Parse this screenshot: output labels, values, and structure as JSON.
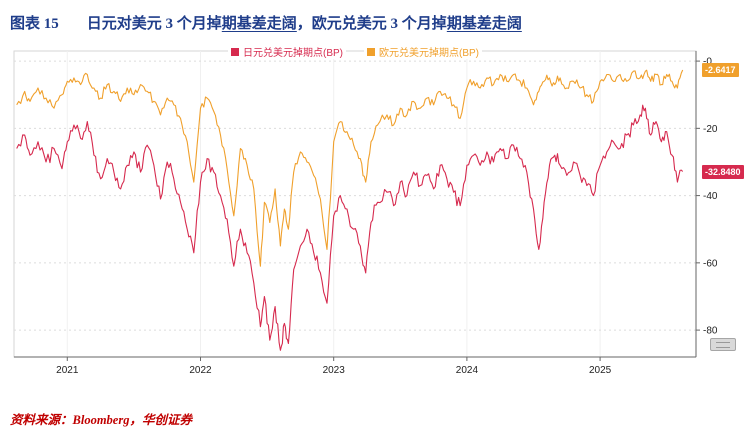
{
  "title": {
    "tag": "图表 15",
    "seg1": "日元对美元 3 个月掉",
    "seg1_u": "期基差走阔",
    "seg2": "，欧元兑美元 3 个月掉",
    "seg2_u": "期基差走阔"
  },
  "colors": {
    "title": "#1f3d8a",
    "footer": "#c00000",
    "axis": "#666666",
    "grid": "#dcdcdc",
    "tick_text": "#222222"
  },
  "footer": {
    "label": "资料来源：",
    "value": "Bloomberg，华创证券"
  },
  "chart_data": {
    "type": "line",
    "title": "",
    "xlabel": "",
    "ylabel": "",
    "legend_position": "top-center",
    "grid": true,
    "x_axis": {
      "ticks": [
        2021,
        2022,
        2023,
        2024,
        2025
      ],
      "range": [
        2020.6,
        2025.72
      ]
    },
    "y_axis": {
      "ticks": [
        0,
        -20,
        -40,
        -60,
        -80
      ],
      "tick_labels": [
        "-0",
        "-20",
        "-40",
        "-60",
        "-80"
      ],
      "range": [
        -88,
        3
      ],
      "position": "right"
    },
    "x": [
      2020.62,
      2020.68,
      2020.72,
      2020.78,
      2020.84,
      2020.9,
      2020.96,
      2021.0,
      2021.05,
      2021.1,
      2021.15,
      2021.2,
      2021.25,
      2021.3,
      2021.35,
      2021.4,
      2021.45,
      2021.5,
      2021.55,
      2021.6,
      2021.65,
      2021.7,
      2021.75,
      2021.8,
      2021.85,
      2021.9,
      2021.95,
      2022.0,
      2022.05,
      2022.1,
      2022.15,
      2022.2,
      2022.25,
      2022.3,
      2022.35,
      2022.4,
      2022.45,
      2022.48,
      2022.52,
      2022.56,
      2022.6,
      2022.63,
      2022.66,
      2022.7,
      2022.75,
      2022.8,
      2022.85,
      2022.9,
      2022.95,
      2023.0,
      2023.05,
      2023.1,
      2023.15,
      2023.2,
      2023.24,
      2023.28,
      2023.33,
      2023.4,
      2023.45,
      2023.5,
      2023.55,
      2023.6,
      2023.65,
      2023.7,
      2023.75,
      2023.8,
      2023.85,
      2023.9,
      2023.95,
      2024.0,
      2024.05,
      2024.1,
      2024.15,
      2024.2,
      2024.25,
      2024.3,
      2024.35,
      2024.4,
      2024.45,
      2024.5,
      2024.54,
      2024.58,
      2024.62,
      2024.66,
      2024.7,
      2024.75,
      2024.8,
      2024.85,
      2024.9,
      2024.95,
      2025.0,
      2025.05,
      2025.1,
      2025.15,
      2025.2,
      2025.25,
      2025.3,
      2025.34,
      2025.38,
      2025.42,
      2025.46,
      2025.5,
      2025.54,
      2025.58,
      2025.62
    ],
    "series": [
      {
        "id": "jpy-usd-swap",
        "name": "日元兑美元掉期点(BP)",
        "color": "#d62a4e",
        "last_label": "-32.8480",
        "noise": 2.2,
        "values": [
          -26,
          -22,
          -28,
          -24,
          -30,
          -26,
          -32,
          -24,
          -19,
          -23,
          -18,
          -28,
          -35,
          -29,
          -33,
          -38,
          -31,
          -27,
          -33,
          -25,
          -31,
          -41,
          -30,
          -35,
          -42,
          -50,
          -57,
          -36,
          -29,
          -33,
          -40,
          -47,
          -61,
          -50,
          -57,
          -66,
          -79,
          -70,
          -83,
          -73,
          -86,
          -78,
          -84,
          -62,
          -55,
          -50,
          -57,
          -63,
          -72,
          -46,
          -40,
          -44,
          -50,
          -55,
          -63,
          -48,
          -42,
          -39,
          -43,
          -36,
          -40,
          -33,
          -37,
          -34,
          -38,
          -31,
          -35,
          -39,
          -43,
          -31,
          -28,
          -31,
          -27,
          -30,
          -26,
          -29,
          -25,
          -29,
          -33,
          -44,
          -56,
          -42,
          -31,
          -28,
          -31,
          -34,
          -30,
          -34,
          -37,
          -40,
          -31,
          -27,
          -24,
          -26,
          -22,
          -19,
          -16,
          -14,
          -22,
          -18,
          -24,
          -21,
          -28,
          -36,
          -32.848
        ]
      },
      {
        "id": "eur-usd-swap",
        "name": "欧元兑美元掉期点(BP)",
        "color": "#f0a02c",
        "last_label": "-2.6417",
        "noise": 1.6,
        "values": [
          -13,
          -9,
          -12,
          -8,
          -11,
          -14,
          -10,
          -6,
          -5,
          -7,
          -4,
          -8,
          -11,
          -7,
          -9,
          -12,
          -8,
          -10,
          -7,
          -9,
          -12,
          -16,
          -11,
          -13,
          -17,
          -24,
          -36,
          -14,
          -11,
          -15,
          -22,
          -32,
          -46,
          -26,
          -31,
          -38,
          -61,
          -42,
          -48,
          -38,
          -55,
          -44,
          -50,
          -33,
          -27,
          -30,
          -34,
          -41,
          -56,
          -24,
          -18,
          -21,
          -25,
          -29,
          -36,
          -24,
          -19,
          -16,
          -19,
          -14,
          -16,
          -12,
          -14,
          -11,
          -13,
          -9,
          -11,
          -13,
          -17,
          -8,
          -6,
          -8,
          -5,
          -7,
          -4,
          -6,
          -4,
          -6,
          -8,
          -13,
          -9,
          -6,
          -5,
          -7,
          -5,
          -8,
          -6,
          -8,
          -10,
          -12,
          -6,
          -4,
          -6,
          -4,
          -6,
          -3,
          -5,
          -3,
          -6,
          -4,
          -7,
          -4,
          -6,
          -8,
          -2.6417
        ]
      }
    ]
  }
}
